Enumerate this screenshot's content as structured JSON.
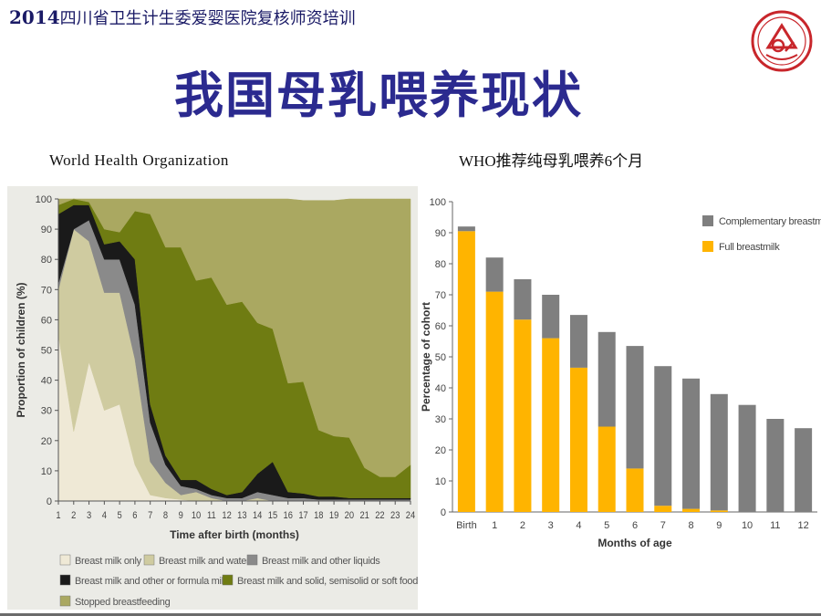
{
  "header": {
    "year": "2014",
    "text": "四川省卫生计生委爱婴医院复核师资培训"
  },
  "slide_title": "我国母乳喂养现状",
  "left_caption": "World Health Organization",
  "right_caption": "WHO推荐纯母乳喂养6个月",
  "chart_data": [
    {
      "type": "area",
      "stacked": true,
      "xlabel": "Time after birth (months)",
      "ylabel": "Proportion of children (%)",
      "x": [
        1,
        2,
        3,
        4,
        5,
        6,
        7,
        8,
        9,
        10,
        11,
        12,
        13,
        14,
        15,
        16,
        17,
        18,
        19,
        20,
        21,
        22,
        23,
        24
      ],
      "ylim": [
        0,
        100
      ],
      "yticks": [
        0,
        10,
        20,
        30,
        40,
        50,
        60,
        70,
        80,
        90,
        100
      ],
      "series": [
        {
          "name": "Breast milk only",
          "color": "#efe9d6",
          "values": [
            55,
            23,
            46,
            30,
            32,
            12,
            2,
            1,
            0.5,
            0,
            0,
            0,
            0,
            0,
            0,
            0,
            0,
            0,
            0,
            0,
            0,
            0,
            0,
            0
          ]
        },
        {
          "name": "Breast milk and water",
          "color": "#cfcba0",
          "values": [
            15,
            67,
            40,
            39,
            37,
            35,
            11,
            5,
            1.5,
            3,
            1,
            0,
            0,
            1,
            0,
            0,
            0,
            0,
            0,
            0,
            0,
            0,
            0,
            0
          ]
        },
        {
          "name": "Breast milk and other liquids",
          "color": "#8a8a8a",
          "values": [
            2,
            0,
            7,
            11,
            11,
            18,
            13,
            6,
            3,
            1,
            1,
            1,
            1,
            2,
            2,
            1,
            1,
            0.5,
            0.5,
            0.5,
            0.5,
            0.5,
            0.5,
            0.5
          ]
        },
        {
          "name": "Breast milk and other or formula milk",
          "color": "#1a1a1a",
          "values": [
            23,
            8,
            5,
            5,
            6,
            15,
            6,
            3,
            2,
            3,
            2,
            1,
            2,
            6,
            11,
            2,
            1.5,
            1,
            1,
            0.5,
            0.5,
            0.5,
            0.5,
            0.5
          ]
        },
        {
          "name": "Breast milk and solid, semisolid or soft food",
          "color": "#6f7c12",
          "values": [
            3,
            2,
            1,
            5,
            3,
            16,
            63,
            69,
            77,
            66,
            70,
            63,
            63,
            50,
            44,
            36,
            37,
            22,
            20,
            20,
            10,
            7,
            7,
            11
          ]
        },
        {
          "name": "Stopped breastfeeding",
          "color": "#aaa861",
          "values": [
            2,
            0,
            1,
            10,
            11,
            4,
            5,
            16,
            16,
            27,
            26,
            35,
            34,
            41,
            43,
            61,
            60,
            76,
            78,
            79,
            89,
            92,
            92,
            88
          ]
        }
      ],
      "legend_position": "bottom"
    },
    {
      "type": "bar",
      "stacked": true,
      "xlabel": "Months of age",
      "ylabel": "Percentage of cohort",
      "categories": [
        "Birth",
        "1",
        "2",
        "3",
        "4",
        "5",
        "6",
        "7",
        "8",
        "9",
        "10",
        "11",
        "12"
      ],
      "ylim": [
        0,
        100
      ],
      "yticks": [
        0,
        10,
        20,
        30,
        40,
        50,
        60,
        70,
        80,
        90,
        100
      ],
      "series": [
        {
          "name": "Full breastmilk",
          "color": "#ffb400",
          "values": [
            90.5,
            71,
            62,
            56,
            46.5,
            27.5,
            14,
            2,
            1,
            0.5,
            0,
            0,
            0
          ]
        },
        {
          "name": "Complementary breastmilk",
          "color": "#7f7f7f",
          "values": [
            1.5,
            11,
            13,
            14,
            17,
            30.5,
            39.5,
            45,
            42,
            37.5,
            34.5,
            30,
            27
          ]
        }
      ],
      "legend_position": "top-right"
    }
  ]
}
